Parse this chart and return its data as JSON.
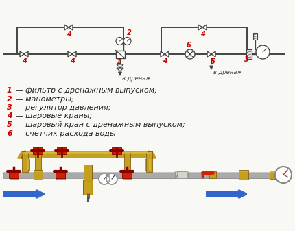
{
  "bg_color": "#f8f8f4",
  "legend_lines": [
    [
      "1",
      " — фильтр с дренажным выпуском;"
    ],
    [
      "2",
      " — манометры;"
    ],
    [
      "3",
      " — регулятор давления;"
    ],
    [
      "4",
      " — шаровые краны;"
    ],
    [
      "5",
      " — шаровый кран с дренажным выпуском;"
    ],
    [
      "6",
      " — счетчик расхода воды"
    ]
  ],
  "v_drenazh": "в дренаж",
  "number_color": "#cc0000",
  "text_color": "#222222",
  "line_color": "#444444",
  "brass": "#c8a832",
  "brass_dark": "#8b6914",
  "brass_mid": "#b8941e",
  "silver": "#b0b0b0",
  "silver_light": "#d8d8d8",
  "red_v": "#cc2200",
  "blue_arr": "#3366cc"
}
